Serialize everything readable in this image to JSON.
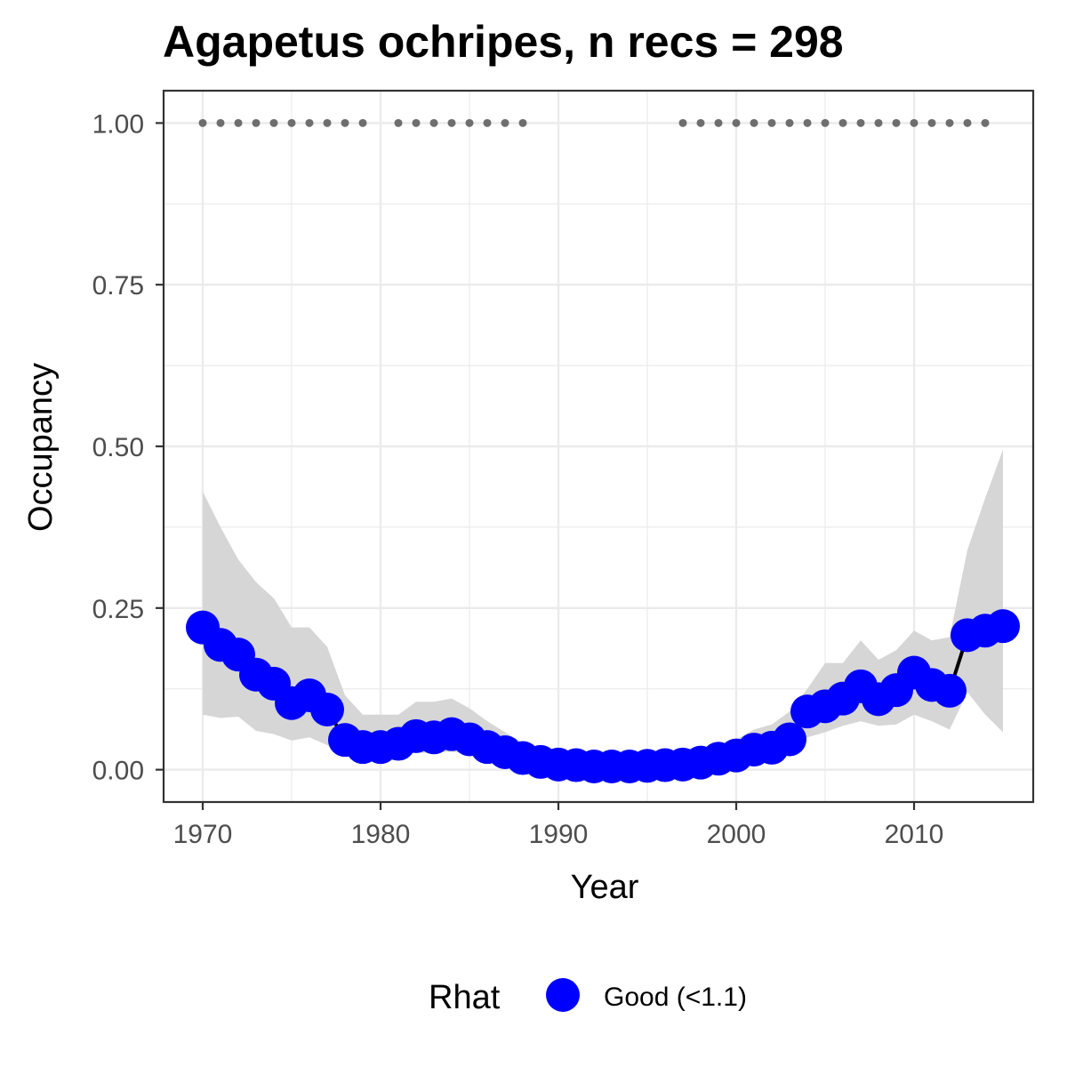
{
  "chart_data": {
    "type": "line",
    "title": "Agapetus ochripes, n recs = 298",
    "xlabel": "Year",
    "ylabel": "Occupancy",
    "xlim": [
      1967.8,
      2016.7
    ],
    "ylim": [
      -0.05,
      1.05
    ],
    "xticks": [
      1970,
      1980,
      1990,
      2000,
      2010
    ],
    "xtick_labels": [
      "1970",
      "1980",
      "1990",
      "2000",
      "2010"
    ],
    "yticks": [
      0,
      0.25,
      0.5,
      0.75,
      1.0
    ],
    "ytick_labels": [
      "0.00",
      "0.25",
      "0.50",
      "0.75",
      "1.00"
    ],
    "grid": true,
    "legend": {
      "title": "Rhat",
      "position": "bottom",
      "entries": [
        {
          "label": "Good (<1.1)",
          "color": "#0000ff"
        }
      ]
    },
    "colors": {
      "points": "#0000ff",
      "line": "#000000",
      "ribbon": "#d6d6d6",
      "records": "#6e6e6e",
      "grid": "#ebebeb",
      "panel_border": "#333333"
    },
    "x": [
      1970,
      1971,
      1972,
      1973,
      1974,
      1975,
      1976,
      1977,
      1978,
      1979,
      1980,
      1981,
      1982,
      1983,
      1984,
      1985,
      1986,
      1987,
      1988,
      1989,
      1990,
      1991,
      1992,
      1993,
      1994,
      1995,
      1996,
      1997,
      1998,
      1999,
      2000,
      2001,
      2002,
      2003,
      2004,
      2005,
      2006,
      2007,
      2008,
      2009,
      2010,
      2011,
      2012,
      2013,
      2014,
      2015
    ],
    "series": [
      {
        "name": "Good (<1.1)",
        "values": [
          0.22,
          0.193,
          0.178,
          0.147,
          0.133,
          0.103,
          0.115,
          0.093,
          0.046,
          0.035,
          0.035,
          0.04,
          0.052,
          0.05,
          0.055,
          0.047,
          0.035,
          0.027,
          0.018,
          0.012,
          0.008,
          0.007,
          0.005,
          0.005,
          0.005,
          0.006,
          0.007,
          0.008,
          0.011,
          0.017,
          0.022,
          0.031,
          0.034,
          0.047,
          0.09,
          0.098,
          0.11,
          0.129,
          0.109,
          0.123,
          0.15,
          0.131,
          0.122,
          0.208,
          0.215,
          0.222
        ],
        "lower": [
          0.085,
          0.08,
          0.082,
          0.06,
          0.055,
          0.045,
          0.05,
          0.038,
          0.022,
          0.018,
          0.018,
          0.022,
          0.026,
          0.026,
          0.028,
          0.024,
          0.018,
          0.013,
          0.009,
          0.006,
          0.003,
          0.003,
          0.002,
          0.002,
          0.002,
          0.003,
          0.003,
          0.004,
          0.006,
          0.009,
          0.012,
          0.017,
          0.019,
          0.027,
          0.05,
          0.058,
          0.068,
          0.075,
          0.068,
          0.07,
          0.085,
          0.075,
          0.062,
          0.12,
          0.085,
          0.058
        ],
        "upper": [
          0.43,
          0.375,
          0.325,
          0.29,
          0.265,
          0.22,
          0.22,
          0.19,
          0.115,
          0.085,
          0.085,
          0.085,
          0.105,
          0.105,
          0.11,
          0.095,
          0.075,
          0.058,
          0.042,
          0.028,
          0.019,
          0.015,
          0.012,
          0.012,
          0.012,
          0.013,
          0.015,
          0.018,
          0.024,
          0.035,
          0.047,
          0.062,
          0.07,
          0.09,
          0.125,
          0.165,
          0.165,
          0.2,
          0.17,
          0.185,
          0.215,
          0.2,
          0.205,
          0.34,
          0.42,
          0.495
        ]
      }
    ],
    "records": {
      "y": 1.0,
      "years": [
        1970,
        1971,
        1972,
        1973,
        1974,
        1975,
        1976,
        1977,
        1978,
        1979,
        1981,
        1982,
        1983,
        1984,
        1985,
        1986,
        1987,
        1988,
        1997,
        1998,
        1999,
        2000,
        2001,
        2002,
        2003,
        2004,
        2005,
        2006,
        2007,
        2008,
        2009,
        2010,
        2011,
        2012,
        2013,
        2014
      ]
    }
  }
}
